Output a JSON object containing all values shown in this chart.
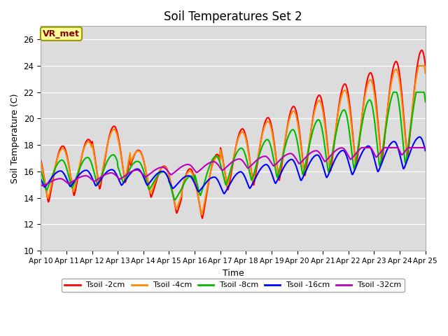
{
  "title": "Soil Temperatures Set 2",
  "xlabel": "Time",
  "ylabel": "Soil Temperature (C)",
  "ylim": [
    10,
    27
  ],
  "yticks": [
    10,
    12,
    14,
    16,
    18,
    20,
    22,
    24,
    26
  ],
  "x_labels": [
    "Apr 10",
    "Apr 11",
    "Apr 12",
    "Apr 13",
    "Apr 14",
    "Apr 15",
    "Apr 16",
    "Apr 17",
    "Apr 18",
    "Apr 19",
    "Apr 20",
    "Apr 21",
    "Apr 22",
    "Apr 23",
    "Apr 24",
    "Apr 25"
  ],
  "bg_color": "#dcdcdc",
  "annotation_text": "VR_met",
  "annotation_bg": "#ffff99",
  "annotation_border": "#999900",
  "annotation_text_color": "#880000",
  "series_names": [
    "Tsoil -2cm",
    "Tsoil -4cm",
    "Tsoil -8cm",
    "Tsoil -16cm",
    "Tsoil -32cm"
  ],
  "series_colors": [
    "#ff0000",
    "#ff8800",
    "#00bb00",
    "#0000ff",
    "#bb00bb"
  ],
  "series_lw": [
    1.5,
    1.5,
    1.5,
    1.5,
    1.5
  ]
}
